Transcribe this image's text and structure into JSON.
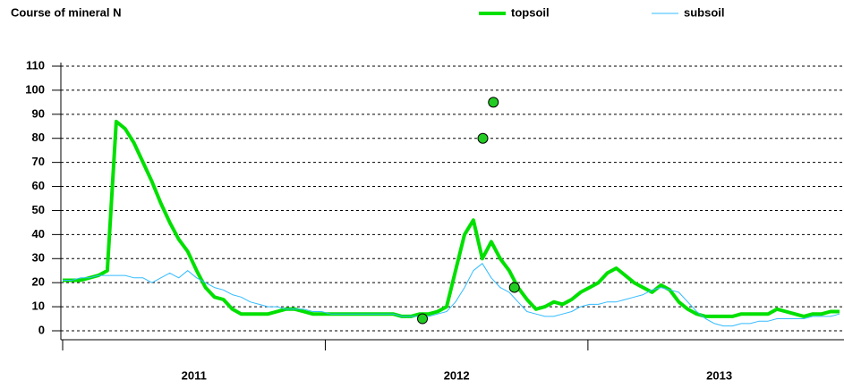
{
  "chart_data": {
    "type": "line",
    "title": "Course of mineral N",
    "x": [
      2011.0,
      2011.034,
      2011.068,
      2011.102,
      2011.136,
      2011.17,
      2011.204,
      2011.238,
      2011.272,
      2011.306,
      2011.34,
      2011.374,
      2011.408,
      2011.442,
      2011.476,
      2011.51,
      2011.544,
      2011.578,
      2011.612,
      2011.646,
      2011.68,
      2011.714,
      2011.748,
      2011.782,
      2011.816,
      2011.85,
      2011.884,
      2011.918,
      2011.952,
      2011.986,
      2012.02,
      2012.054,
      2012.088,
      2012.122,
      2012.156,
      2012.19,
      2012.224,
      2012.258,
      2012.292,
      2012.326,
      2012.36,
      2012.394,
      2012.428,
      2012.462,
      2012.496,
      2012.53,
      2012.564,
      2012.598,
      2012.632,
      2012.666,
      2012.7,
      2012.734,
      2012.768,
      2012.802,
      2012.836,
      2012.87,
      2012.904,
      2012.938,
      2012.972,
      2013.006,
      2013.04,
      2013.074,
      2013.108,
      2013.142,
      2013.176,
      2013.21,
      2013.244,
      2013.278,
      2013.312,
      2013.346,
      2013.38,
      2013.414,
      2013.448,
      2013.482,
      2013.516,
      2013.55,
      2013.584,
      2013.618,
      2013.652,
      2013.686,
      2013.72,
      2013.754,
      2013.788,
      2013.822,
      2013.856,
      2013.89,
      2013.924,
      2013.958
    ],
    "series": [
      {
        "name": "topsoil",
        "color": "#00e000",
        "width": 4,
        "values": [
          21,
          21,
          21,
          22,
          23,
          25,
          87,
          84,
          78,
          70,
          62,
          53,
          45,
          38,
          33,
          25,
          18,
          14,
          13,
          9,
          7,
          7,
          7,
          7,
          8,
          9,
          9,
          8,
          7,
          7,
          7,
          7,
          7,
          7,
          7,
          7,
          7,
          7,
          6,
          6,
          7,
          7,
          8,
          10,
          25,
          40,
          46,
          30,
          37,
          30,
          25,
          18,
          13,
          9,
          10,
          12,
          11,
          13,
          16,
          18,
          20,
          24,
          26,
          23,
          20,
          18,
          16,
          19,
          17,
          12,
          9,
          7,
          6,
          6,
          6,
          6,
          7,
          7,
          7,
          7,
          9,
          8,
          7,
          6,
          7,
          7,
          8,
          8
        ]
      },
      {
        "name": "subsoil",
        "color": "#33bbff",
        "width": 1,
        "values": [
          21,
          21,
          22,
          22,
          23,
          23,
          23,
          23,
          22,
          22,
          20,
          22,
          24,
          22,
          25,
          22,
          20,
          18,
          17,
          15,
          14,
          12,
          11,
          10,
          10,
          9,
          9,
          9,
          8,
          8,
          7,
          7,
          7,
          7,
          7,
          7,
          7,
          7,
          6,
          6,
          6,
          6,
          7,
          8,
          12,
          18,
          25,
          28,
          22,
          18,
          16,
          12,
          8,
          7,
          6,
          6,
          7,
          8,
          10,
          11,
          11,
          12,
          12,
          13,
          14,
          15,
          17,
          18,
          17,
          16,
          12,
          8,
          5,
          3,
          2,
          2,
          3,
          3,
          4,
          4,
          5,
          5,
          5,
          5,
          6,
          6,
          6,
          7
        ]
      }
    ],
    "points": {
      "color": "#22cc22",
      "x": [
        2012.37,
        2012.6,
        2012.64,
        2012.72
      ],
      "values": [
        5,
        80,
        95,
        18
      ]
    },
    "xlim": [
      2011,
      2013.975
    ],
    "xticks": [
      2011,
      2012,
      2013
    ],
    "ylim": [
      0,
      110
    ],
    "yticks": [
      0,
      10,
      20,
      30,
      40,
      50,
      60,
      70,
      80,
      90,
      100,
      110
    ],
    "grid": true
  }
}
